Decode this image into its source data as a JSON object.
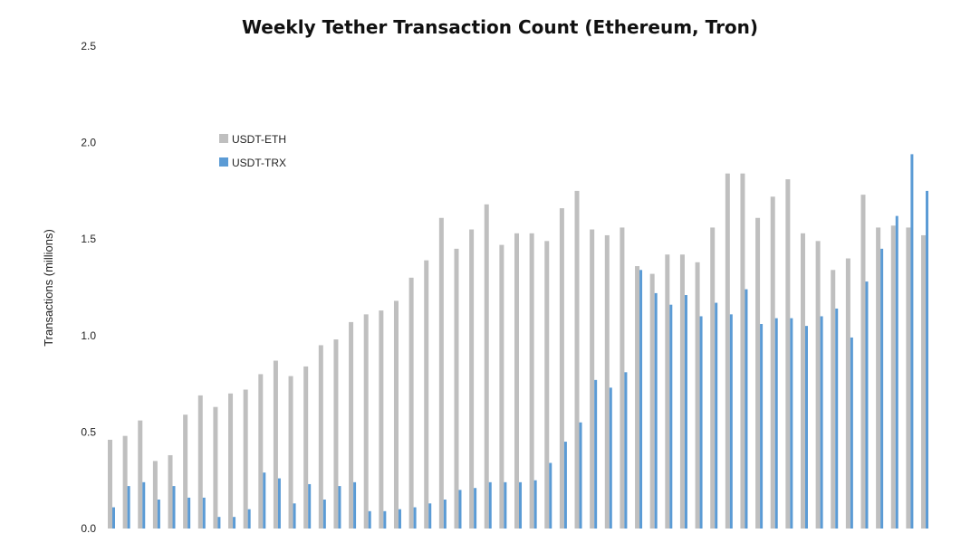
{
  "chart_data": {
    "type": "bar",
    "title": "Weekly Tether Transaction Count (Ethereum, Tron)",
    "xlabel": "",
    "ylabel": "Transactions (millions)",
    "ylim": [
      0,
      2.5
    ],
    "yticks": [
      "0.0",
      "0.5",
      "1.0",
      "1.5",
      "2.0",
      "2.5"
    ],
    "legend_position": "top-left",
    "grid": false,
    "series": [
      {
        "name": "USDT-ETH",
        "color": "#bfbfbf",
        "values": [
          0.46,
          0.48,
          0.56,
          0.35,
          0.38,
          0.59,
          0.69,
          0.63,
          0.7,
          0.72,
          0.8,
          0.87,
          0.79,
          0.84,
          0.95,
          0.98,
          1.07,
          1.11,
          1.13,
          1.18,
          1.3,
          1.39,
          1.61,
          1.45,
          1.55,
          1.68,
          1.47,
          1.53,
          1.53,
          1.49,
          1.66,
          1.75,
          1.55,
          1.52,
          1.56,
          1.36,
          1.32,
          1.42,
          1.42,
          1.38,
          1.56,
          1.84,
          1.84,
          1.61,
          1.72,
          1.81,
          1.53,
          1.49,
          1.34,
          1.4,
          1.73,
          1.56,
          1.57,
          1.56,
          1.52
        ]
      },
      {
        "name": "USDT-TRX",
        "color": "#5b9bd5",
        "values": [
          0.11,
          0.22,
          0.24,
          0.15,
          0.22,
          0.16,
          0.16,
          0.06,
          0.06,
          0.1,
          0.29,
          0.26,
          0.13,
          0.23,
          0.15,
          0.22,
          0.24,
          0.09,
          0.09,
          0.1,
          0.11,
          0.13,
          0.15,
          0.2,
          0.21,
          0.24,
          0.24,
          0.24,
          0.25,
          0.34,
          0.45,
          0.55,
          0.77,
          0.73,
          0.81,
          1.34,
          1.22,
          1.16,
          1.21,
          1.1,
          1.17,
          1.11,
          1.24,
          1.06,
          1.09,
          1.09,
          1.05,
          1.1,
          1.14,
          0.99,
          1.28,
          1.45,
          1.62,
          1.94,
          1.75
        ]
      }
    ]
  }
}
